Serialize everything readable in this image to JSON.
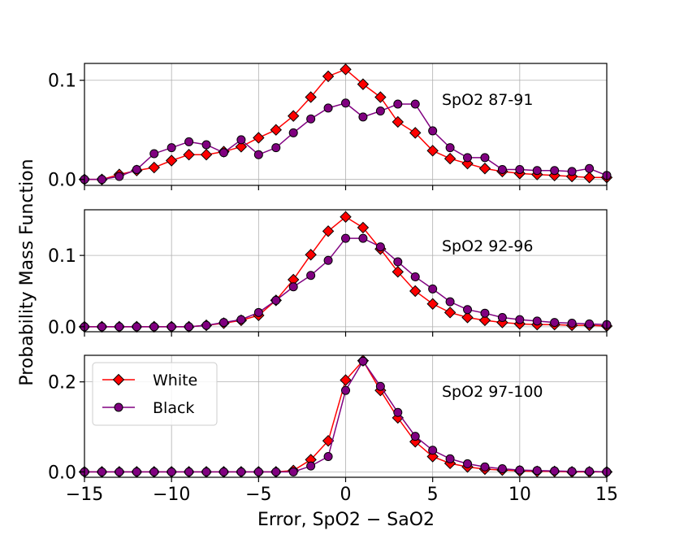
{
  "chart_data": {
    "type": "line",
    "ylabel": "Probability Mass Function",
    "xlabel": "Error, SpO2 − SaO2",
    "xlim": [
      -15,
      15
    ],
    "xticks": [
      -15,
      -10,
      -5,
      0,
      5,
      10,
      15
    ],
    "x": [
      -15,
      -14,
      -13,
      -12,
      -11,
      -10,
      -9,
      -8,
      -7,
      -6,
      -5,
      -4,
      -3,
      -2,
      -1,
      0,
      1,
      2,
      3,
      4,
      5,
      6,
      7,
      8,
      9,
      10,
      11,
      12,
      13,
      14,
      15
    ],
    "legend": {
      "placement": "upper-left of bottom panel",
      "entries": [
        {
          "name": "White",
          "color": "#ff0000",
          "marker": "diamond"
        },
        {
          "name": "Black",
          "color": "#800080",
          "marker": "circle"
        }
      ]
    },
    "panels": [
      {
        "label": "SpO2 87-91",
        "ylim": [
          -0.006,
          0.117
        ],
        "yticks": [
          0.0,
          0.1
        ],
        "yticklabels": [
          "0.0",
          "0.1"
        ],
        "series": [
          {
            "name": "White",
            "values": [
              0,
              0,
              0.005,
              0.009,
              0.012,
              0.019,
              0.025,
              0.025,
              0.028,
              0.033,
              0.042,
              0.05,
              0.064,
              0.083,
              0.104,
              0.111,
              0.096,
              0.083,
              0.058,
              0.047,
              0.029,
              0.021,
              0.016,
              0.011,
              0.008,
              0.006,
              0.005,
              0.004,
              0.003,
              0.002,
              0.002
            ]
          },
          {
            "name": "Black",
            "values": [
              0,
              0,
              0.003,
              0.01,
              0.026,
              0.032,
              0.038,
              0.035,
              0.027,
              0.04,
              0.025,
              0.032,
              0.047,
              0.061,
              0.072,
              0.077,
              0.063,
              0.069,
              0.076,
              0.076,
              0.049,
              0.032,
              0.022,
              0.022,
              0.01,
              0.01,
              0.009,
              0.009,
              0.008,
              0.011,
              0.004
            ]
          }
        ]
      },
      {
        "label": "SpO2 92-96",
        "ylim": [
          -0.007,
          0.164
        ],
        "yticks": [
          0.0,
          0.1
        ],
        "yticklabels": [
          "0.0",
          "0.1"
        ],
        "series": [
          {
            "name": "White",
            "values": [
              0,
              0,
              0,
              0,
              0,
              0,
              0,
              0.002,
              0.005,
              0.009,
              0.016,
              0.037,
              0.066,
              0.101,
              0.134,
              0.154,
              0.139,
              0.109,
              0.077,
              0.05,
              0.032,
              0.02,
              0.013,
              0.009,
              0.006,
              0.004,
              0.003,
              0.003,
              0.002,
              0.002,
              0.001
            ]
          },
          {
            "name": "Black",
            "values": [
              0,
              0,
              0,
              0,
              0,
              0,
              0,
              0.002,
              0.006,
              0.01,
              0.02,
              0.037,
              0.056,
              0.072,
              0.093,
              0.124,
              0.124,
              0.112,
              0.091,
              0.07,
              0.053,
              0.035,
              0.024,
              0.019,
              0.013,
              0.01,
              0.008,
              0.006,
              0.005,
              0.004,
              0.003
            ]
          }
        ]
      },
      {
        "label": "SpO2 97-100",
        "ylim": [
          -0.012,
          0.259
        ],
        "yticks": [
          0.0,
          0.2
        ],
        "yticklabels": [
          "0.0",
          "0.2"
        ],
        "series": [
          {
            "name": "White",
            "values": [
              0,
              0,
              0,
              0,
              0,
              0,
              0,
              0,
              0,
              0,
              0,
              0,
              0.003,
              0.027,
              0.069,
              0.204,
              0.247,
              0.181,
              0.12,
              0.067,
              0.034,
              0.019,
              0.011,
              0.006,
              0.004,
              0.002,
              0.001,
              0.001,
              0,
              0,
              0
            ]
          },
          {
            "name": "Black",
            "values": [
              0,
              0,
              0,
              0,
              0,
              0,
              0,
              0,
              0,
              0,
              0,
              0,
              0,
              0.013,
              0.034,
              0.181,
              0.246,
              0.19,
              0.132,
              0.079,
              0.048,
              0.029,
              0.018,
              0.011,
              0.007,
              0.004,
              0.003,
              0.002,
              0.001,
              0.001,
              0
            ]
          }
        ]
      }
    ]
  }
}
